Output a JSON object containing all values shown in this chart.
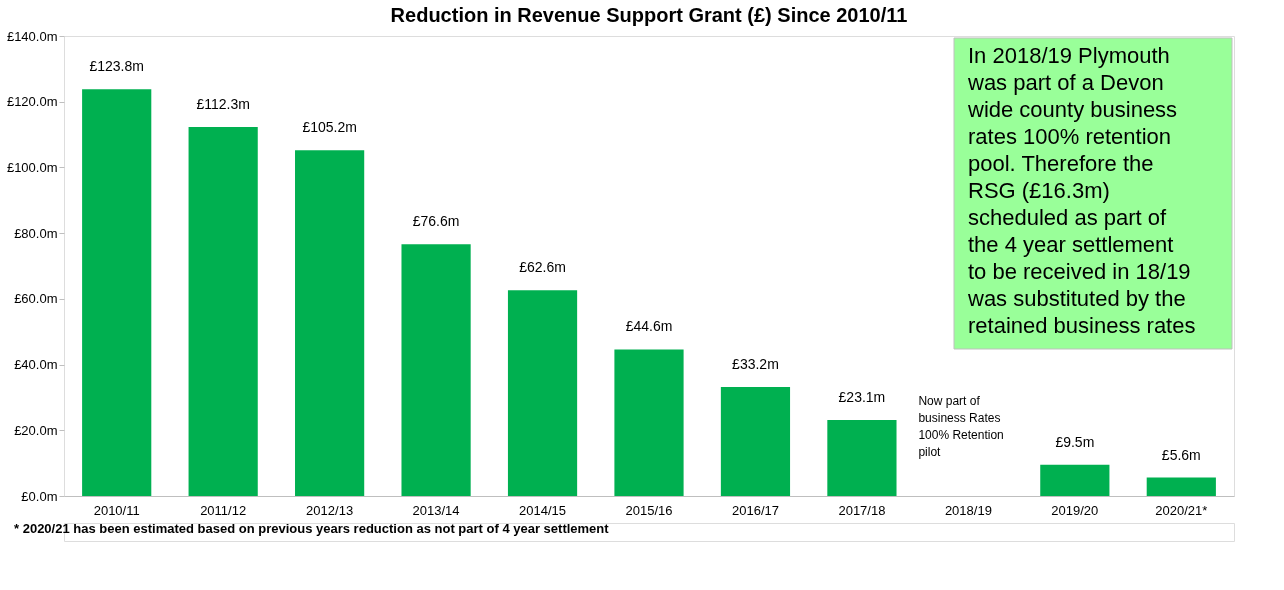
{
  "chart_data": {
    "type": "bar",
    "title": "Reduction in Revenue Support Grant (£) Since 2010/11",
    "categories": [
      "2010/11",
      "2011/12",
      "2012/13",
      "2013/14",
      "2014/15",
      "2015/16",
      "2016/17",
      "2017/18",
      "2018/19",
      "2019/20",
      "2020/21*"
    ],
    "values": [
      123.8,
      112.3,
      105.2,
      76.6,
      62.6,
      44.6,
      33.2,
      23.1,
      null,
      9.5,
      5.6
    ],
    "value_labels": [
      "£123.8m",
      "£112.3m",
      "£105.2m",
      "£76.6m",
      "£62.6m",
      "£44.6m",
      "£33.2m",
      "£23.1m",
      null,
      "£9.5m",
      "£5.6m"
    ],
    "color": "#00b050",
    "ylim": [
      0,
      140
    ],
    "yticks": [
      {
        "value": 0,
        "label": "£0.0m"
      },
      {
        "value": 20,
        "label": "£20.0m"
      },
      {
        "value": 40,
        "label": "£40.0m"
      },
      {
        "value": 60,
        "label": "£60.0m"
      },
      {
        "value": 80,
        "label": "£80.0m"
      },
      {
        "value": 100,
        "label": "£100.0m"
      },
      {
        "value": 120,
        "label": "£120.0m"
      },
      {
        "value": 140,
        "label": "£140.0m"
      }
    ],
    "grid": false,
    "annotations": [
      "Now part of\nbusiness Rates\n100% Retention\npilot",
      "In 2018/19 Plymouth\nwas part of a Devon\nwide county business\nrates 100% retention\npool. Therefore the\nRSG (£16.3m)\nscheduled as part of\nthe 4 year settlement\nto be received in 18/19\nwas substituted by the\nretained business rates",
      "* 2020/21 has been estimated based on previous years reduction as not part of 4 year settlement"
    ]
  }
}
